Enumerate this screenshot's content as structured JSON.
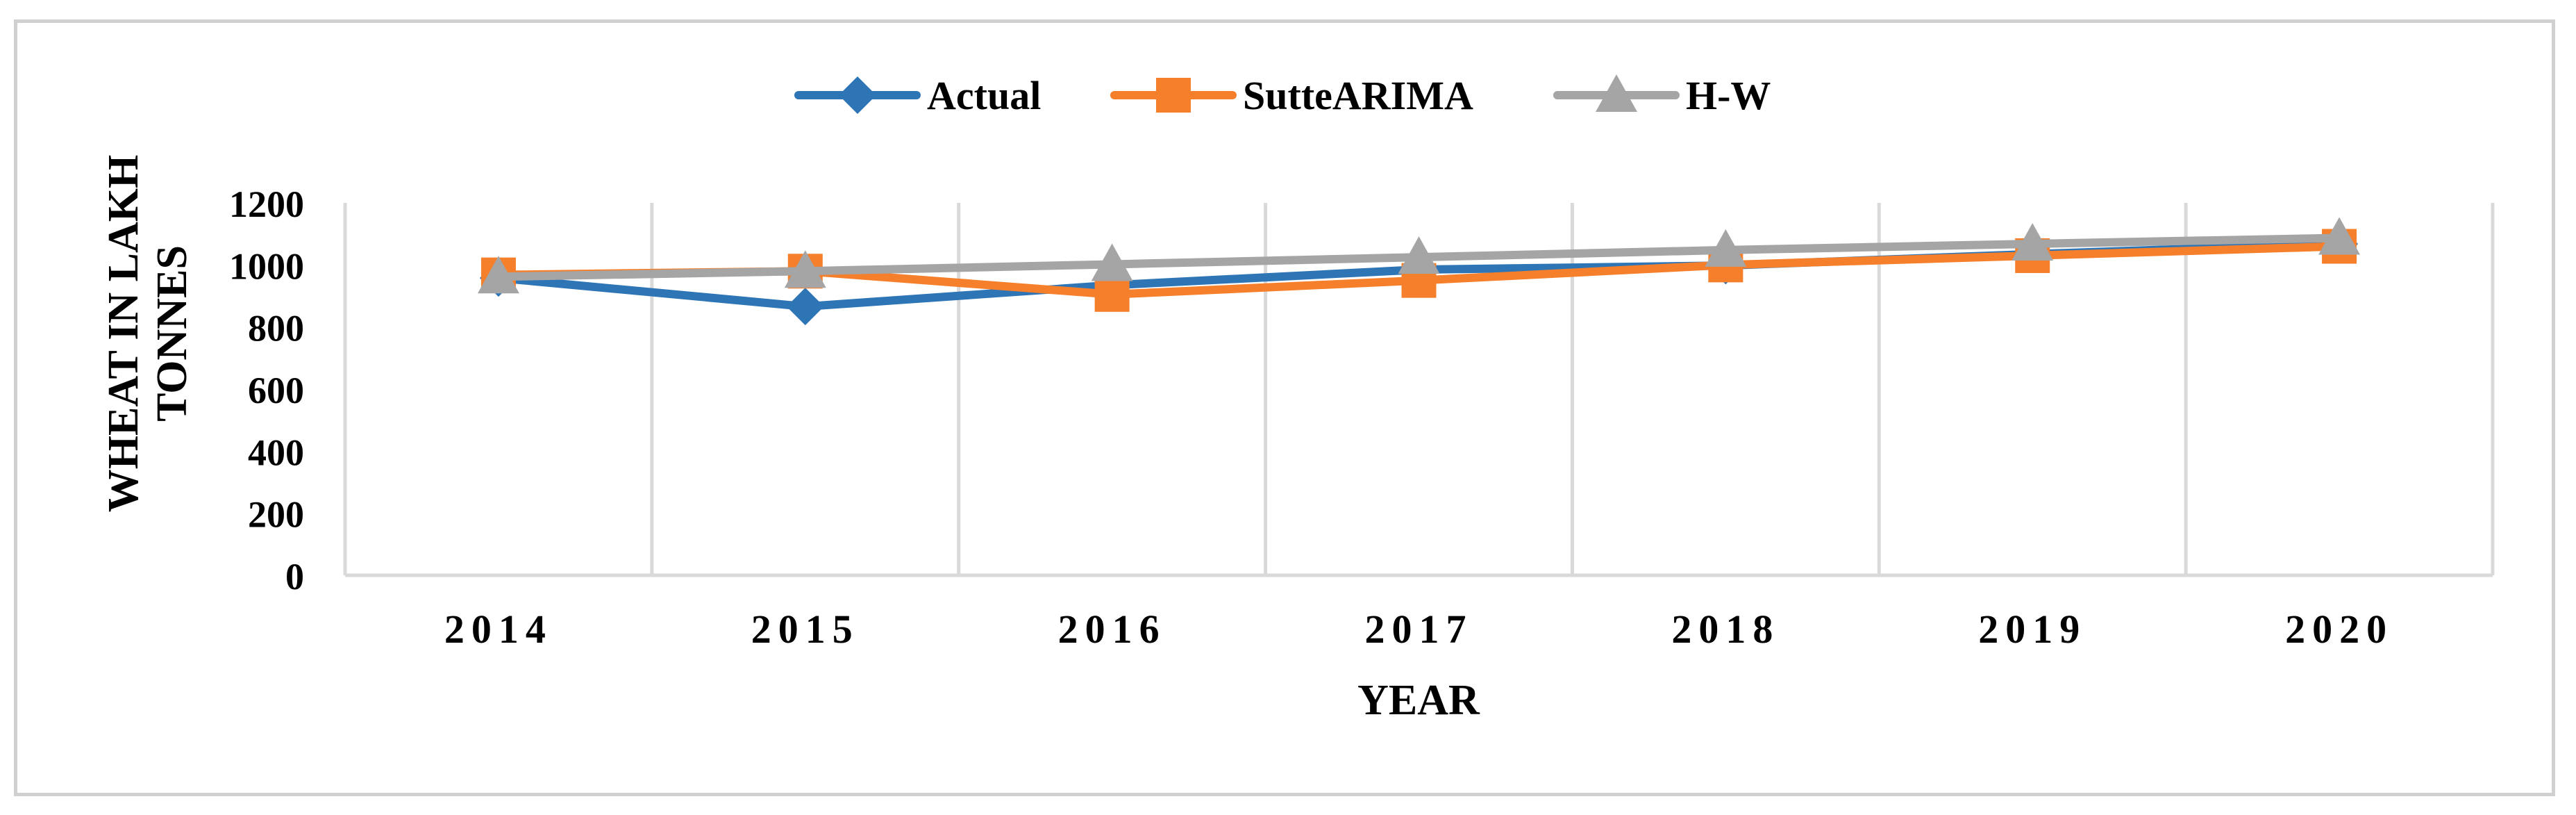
{
  "chart_data": {
    "type": "line",
    "title": "",
    "xlabel": "YEAR",
    "ylabel_lines": [
      "WHEAT IN LAKH",
      "TONNES"
    ],
    "categories": [
      "2014",
      "2015",
      "2016",
      "2017",
      "2018",
      "2019",
      "2020"
    ],
    "ylim": [
      0,
      1200
    ],
    "yticks": [
      0,
      200,
      400,
      600,
      800,
      1000,
      1200
    ],
    "ytick_labels": [
      "0",
      "200",
      "400",
      "600",
      "800",
      "1000",
      "1200"
    ],
    "grid": "vertical",
    "legend_position": "top",
    "series": [
      {
        "name": "Actual",
        "values": [
          958,
          866,
          935,
          985,
          998,
          1035,
          1068
        ],
        "color": "#2E75B6",
        "marker": "diamond"
      },
      {
        "name": "SutteARIMA",
        "values": [
          968,
          980,
          905,
          950,
          1000,
          1030,
          1060
        ],
        "color": "#F57F2A",
        "marker": "square"
      },
      {
        "name": "H-W",
        "values": [
          962,
          980,
          1002,
          1025,
          1048,
          1068,
          1087
        ],
        "color": "#A5A5A5",
        "marker": "triangle"
      }
    ]
  }
}
